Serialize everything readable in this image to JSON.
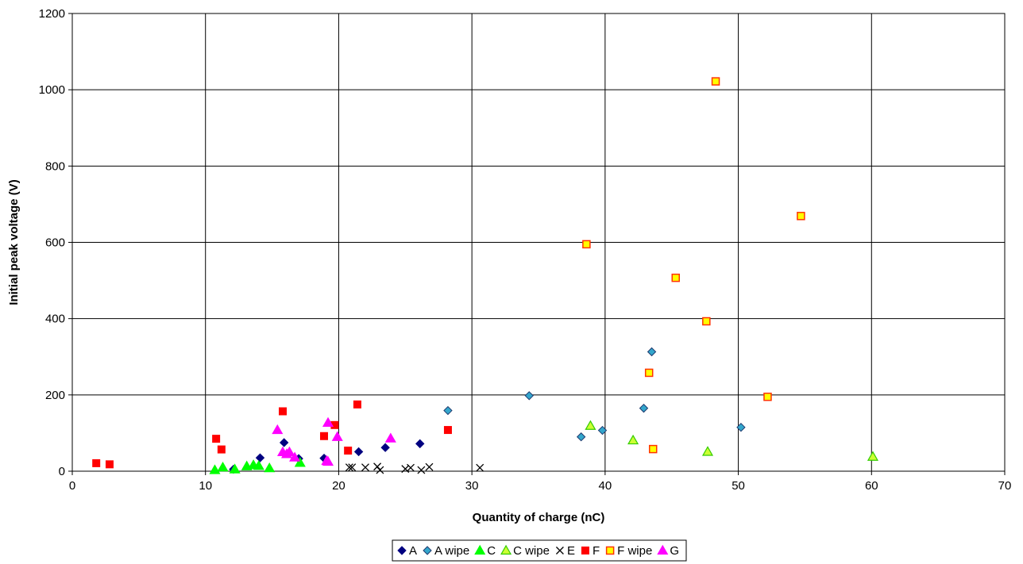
{
  "chart_data": {
    "type": "scatter",
    "title": "",
    "xlabel": "Quantity of charge (nC)",
    "ylabel": "Initial peak voltage (V)",
    "xlim": [
      0,
      70
    ],
    "ylim": [
      0,
      1200
    ],
    "xticks": [
      "0",
      "10",
      "20",
      "30",
      "40",
      "50",
      "60",
      "70"
    ],
    "yticks": [
      "0",
      "200",
      "400",
      "600",
      "800",
      "1000",
      "1200"
    ],
    "grid": true,
    "legend_position": "bottom",
    "series": [
      {
        "name": "A",
        "marker": "diamond",
        "color": "#000080",
        "stroke": "#000080",
        "points": [
          [
            12.1,
            5
          ],
          [
            14.1,
            35
          ],
          [
            15.9,
            75
          ],
          [
            17.0,
            33
          ],
          [
            18.9,
            34
          ],
          [
            21.5,
            51
          ],
          [
            23.5,
            62
          ],
          [
            26.1,
            72
          ]
        ]
      },
      {
        "name": "A wipe",
        "marker": "diamond",
        "color": "#33A6CC",
        "stroke": "#1F3A6E",
        "points": [
          [
            28.2,
            159
          ],
          [
            34.3,
            198
          ],
          [
            38.2,
            90
          ],
          [
            39.8,
            107
          ],
          [
            42.9,
            165
          ],
          [
            43.5,
            313
          ],
          [
            50.2,
            115
          ]
        ]
      },
      {
        "name": "C",
        "marker": "triangle",
        "color": "#00FF00",
        "stroke": "#00FF00",
        "points": [
          [
            10.7,
            3
          ],
          [
            11.3,
            10
          ],
          [
            12.2,
            5
          ],
          [
            13.1,
            13
          ],
          [
            13.6,
            16
          ],
          [
            14.0,
            14
          ],
          [
            14.8,
            8
          ],
          [
            17.1,
            22
          ]
        ]
      },
      {
        "name": "C wipe",
        "marker": "triangle",
        "color": "#CCFF33",
        "stroke": "#33CC00",
        "points": [
          [
            38.9,
            119
          ],
          [
            42.1,
            81
          ],
          [
            47.7,
            51
          ],
          [
            60.1,
            38
          ]
        ]
      },
      {
        "name": "E",
        "marker": "x",
        "color": "#000000",
        "stroke": "#000000",
        "points": [
          [
            20.8,
            10
          ],
          [
            21.0,
            10
          ],
          [
            22.0,
            10
          ],
          [
            22.9,
            12
          ],
          [
            23.1,
            3
          ],
          [
            25.0,
            6
          ],
          [
            25.4,
            9
          ],
          [
            26.2,
            3
          ],
          [
            26.8,
            11
          ],
          [
            30.6,
            9
          ]
        ]
      },
      {
        "name": "F",
        "marker": "square",
        "color": "#FF0000",
        "stroke": "#FF0000",
        "points": [
          [
            1.8,
            21
          ],
          [
            2.8,
            18
          ],
          [
            10.8,
            85
          ],
          [
            11.2,
            57
          ],
          [
            15.8,
            157
          ],
          [
            18.9,
            92
          ],
          [
            19.7,
            121
          ],
          [
            20.7,
            54
          ],
          [
            21.4,
            175
          ],
          [
            28.2,
            108
          ]
        ]
      },
      {
        "name": "F wipe",
        "marker": "square",
        "color": "#FFFF00",
        "stroke": "#FF3300",
        "points": [
          [
            38.6,
            595
          ],
          [
            43.3,
            258
          ],
          [
            43.6,
            58
          ],
          [
            45.3,
            507
          ],
          [
            47.6,
            393
          ],
          [
            48.3,
            1022
          ],
          [
            52.2,
            195
          ],
          [
            54.7,
            669
          ]
        ]
      },
      {
        "name": "G",
        "marker": "triangle",
        "color": "#FF00FF",
        "stroke": "#FF00FF",
        "points": [
          [
            15.4,
            108
          ],
          [
            15.8,
            50
          ],
          [
            16.1,
            45
          ],
          [
            16.3,
            50
          ],
          [
            16.7,
            36
          ],
          [
            19.1,
            27
          ],
          [
            19.2,
            25
          ],
          [
            19.2,
            127
          ],
          [
            19.9,
            90
          ],
          [
            23.9,
            86
          ]
        ]
      }
    ]
  }
}
